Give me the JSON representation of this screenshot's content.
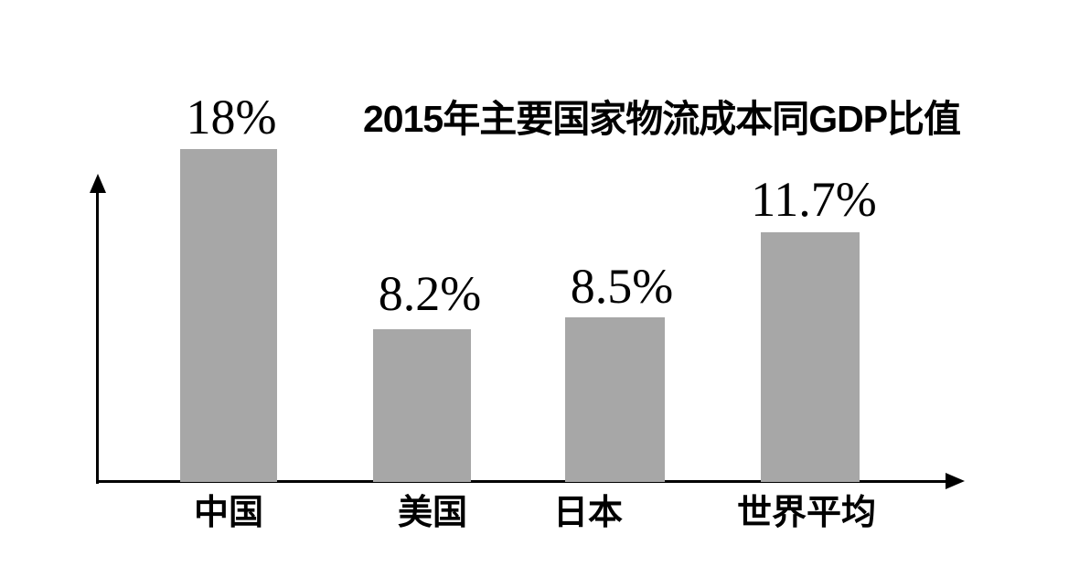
{
  "chart_data": {
    "type": "bar",
    "title": "2015年主要国家物流成本同GDP比值",
    "categories": [
      "中国",
      "美国",
      "日本",
      "世界平均"
    ],
    "values": [
      18,
      8.2,
      8.5,
      11.7
    ],
    "value_labels": [
      "18%",
      "8.2%",
      "8.5%",
      "11.7%"
    ],
    "unit": "%",
    "xlabel": "",
    "ylabel": "",
    "grid": false,
    "legend_position": "none",
    "axes": {
      "x_axis_arrow": "right",
      "y_axis_arrow": "up",
      "tick_labels_shown": false
    },
    "colors": {
      "bar_color": "#a7a7a7",
      "text_color": "#000000",
      "axis_color": "#000000",
      "background": "#ffffff"
    }
  }
}
